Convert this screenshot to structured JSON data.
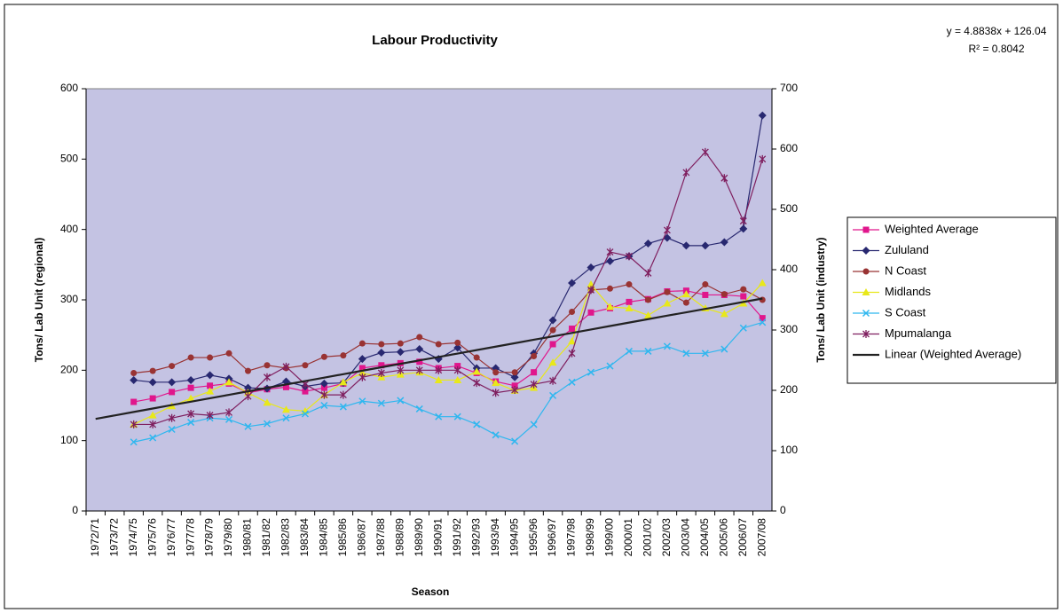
{
  "chart_data": {
    "type": "line",
    "title": "Labour Productivity",
    "annotations": [
      "y = 4.8838x + 126.04",
      "R² = 0.8042"
    ],
    "x_label": "Season",
    "y_label": "Tons/ Lab Unit (regional)",
    "y2_label": "Tons/ Lab Unit (industry)",
    "categories": [
      "1972/71",
      "1973/72",
      "1974/75",
      "1975/76",
      "1976/77",
      "1977/78",
      "1978/79",
      "1979/80",
      "1980/81",
      "1981/82",
      "1982/83",
      "1983/84",
      "1984/85",
      "1985/86",
      "1986/87",
      "1987/88",
      "1988/89",
      "1989/90",
      "1990/91",
      "1991/92",
      "1992/93",
      "1993/94",
      "1994/95",
      "1995/96",
      "1996/97",
      "1997/98",
      "1998/99",
      "1999/00",
      "2000/01",
      "2001/02",
      "2002/03",
      "2003/04",
      "2004/05",
      "2005/06",
      "2006/07",
      "2007/08"
    ],
    "ylim": [
      0,
      600
    ],
    "yticks": [
      0,
      100,
      200,
      300,
      400,
      500,
      600
    ],
    "y2lim": [
      0,
      700
    ],
    "y2ticks": [
      0,
      100,
      200,
      300,
      400,
      500,
      600,
      700
    ],
    "legend": "right",
    "background": "#c4c3e3",
    "series": [
      {
        "name": "Weighted Average",
        "color": "#e0168c",
        "marker": "square",
        "values": [
          null,
          null,
          155,
          160,
          169,
          175,
          178,
          181,
          168,
          173,
          176,
          170,
          175,
          181,
          203,
          207,
          210,
          212,
          203,
          206,
          196,
          184,
          178,
          197,
          237,
          259,
          282,
          288,
          297,
          301,
          312,
          313,
          307,
          307,
          305,
          274
        ]
      },
      {
        "name": "Zululand",
        "color": "#282870",
        "marker": "diamond",
        "values": [
          null,
          null,
          186,
          183,
          183,
          186,
          193,
          188,
          175,
          174,
          184,
          177,
          181,
          182,
          216,
          225,
          226,
          230,
          216,
          232,
          203,
          203,
          190,
          224,
          271,
          324,
          346,
          355,
          362,
          380,
          388,
          377,
          377,
          382,
          401,
          562
        ]
      },
      {
        "name": "N Coast",
        "color": "#993333",
        "marker": "circle",
        "values": [
          null,
          null,
          196,
          199,
          206,
          218,
          218,
          224,
          199,
          207,
          203,
          207,
          219,
          221,
          238,
          237,
          238,
          247,
          237,
          239,
          218,
          197,
          197,
          220,
          257,
          283,
          314,
          316,
          322,
          300,
          311,
          296,
          322,
          308,
          315,
          300
        ]
      },
      {
        "name": "Midlands",
        "color": "#e8e81a",
        "marker": "triangle",
        "values": [
          null,
          null,
          123,
          136,
          149,
          160,
          170,
          183,
          168,
          154,
          144,
          142,
          165,
          183,
          196,
          190,
          194,
          197,
          186,
          186,
          198,
          182,
          171,
          175,
          211,
          241,
          322,
          290,
          288,
          278,
          295,
          308,
          288,
          280,
          295,
          324
        ]
      },
      {
        "name": "S Coast",
        "color": "#2fb7ef",
        "marker": "x",
        "values": [
          null,
          null,
          98,
          104,
          116,
          126,
          132,
          130,
          120,
          124,
          132,
          138,
          150,
          148,
          156,
          153,
          157,
          145,
          134,
          134,
          123,
          108,
          99,
          123,
          164,
          183,
          197,
          206,
          227,
          227,
          234,
          224,
          224,
          230,
          260,
          268
        ]
      },
      {
        "name": "Mpumalanga",
        "color": "#7f1f5f",
        "marker": "star",
        "values": [
          null,
          null,
          123,
          123,
          132,
          138,
          136,
          140,
          163,
          190,
          205,
          180,
          165,
          165,
          190,
          196,
          200,
          200,
          200,
          200,
          182,
          168,
          172,
          180,
          185,
          224,
          314,
          368,
          362,
          338,
          399,
          481,
          510,
          473,
          412,
          500
        ]
      },
      {
        "name": "Linear (Weighted Average)",
        "color": "#222222",
        "marker": "none",
        "values": [
          130.9,
          135.8,
          140.7,
          145.6,
          150.5,
          155.3,
          160.2,
          165.1,
          170.0,
          174.9,
          179.8,
          184.6,
          189.5,
          194.4,
          199.3,
          204.2,
          209.1,
          214.0,
          218.8,
          223.7,
          228.6,
          233.5,
          238.4,
          243.3,
          248.1,
          253.0,
          257.9,
          262.8,
          267.7,
          272.6,
          277.5,
          282.3,
          287.2,
          292.1,
          297.0,
          301.9
        ]
      }
    ]
  }
}
